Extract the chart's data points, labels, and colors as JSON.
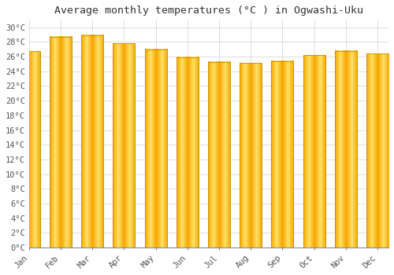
{
  "title": "Average monthly temperatures (°C ) in Ogwashi-Uku",
  "months": [
    "Jan",
    "Feb",
    "Mar",
    "Apr",
    "May",
    "Jun",
    "Jul",
    "Aug",
    "Sep",
    "Oct",
    "Nov",
    "Dec"
  ],
  "values": [
    26.7,
    28.7,
    28.9,
    27.8,
    27.0,
    25.9,
    25.3,
    25.1,
    25.4,
    26.2,
    26.8,
    26.4
  ],
  "bar_color_center": "#FFE066",
  "bar_color_edge": "#F5A800",
  "background_color": "#FFFFFF",
  "grid_color": "#D8D8D8",
  "ylim": [
    0,
    31
  ],
  "yticks": [
    0,
    2,
    4,
    6,
    8,
    10,
    12,
    14,
    16,
    18,
    20,
    22,
    24,
    26,
    28,
    30
  ],
  "title_fontsize": 9.5,
  "tick_fontsize": 7.5,
  "font_family": "monospace"
}
